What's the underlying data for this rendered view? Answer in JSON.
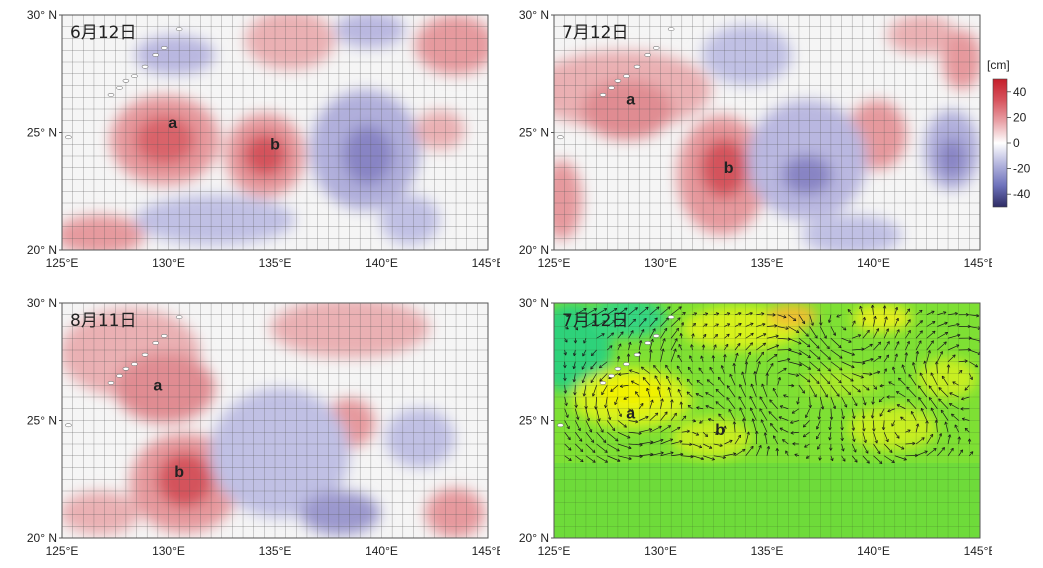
{
  "colorbar": {
    "unit": "[cm]",
    "ticks": [
      "40",
      "20",
      "0",
      "-20",
      "-40"
    ],
    "colors": [
      "#2d2b64",
      "#6e72bb",
      "#b4b5de",
      "#ffffff",
      "#e9a3a8",
      "#d7545e",
      "#c51f2b"
    ]
  },
  "axes": {
    "lat_ticks": [
      "30° N",
      "25° N",
      "20° N"
    ],
    "lon_ticks": [
      "125°E",
      "130°E",
      "135°E",
      "140°E",
      "145°E"
    ]
  },
  "panels": [
    {
      "id": "p1",
      "date": "6月12日",
      "kind": "anomaly",
      "eddies": [
        {
          "label": "a",
          "lon": 130.2,
          "lat": 25.4
        },
        {
          "label": "b",
          "lon": 135.0,
          "lat": 24.5
        }
      ]
    },
    {
      "id": "p2",
      "date": "7月12日",
      "kind": "anomaly",
      "eddies": [
        {
          "label": "a",
          "lon": 128.6,
          "lat": 26.4
        },
        {
          "label": "b",
          "lon": 133.2,
          "lat": 23.5
        }
      ]
    },
    {
      "id": "p3",
      "date": "8月11日",
      "kind": "anomaly",
      "eddies": [
        {
          "label": "a",
          "lon": 129.5,
          "lat": 26.5
        },
        {
          "label": "b",
          "lon": 130.5,
          "lat": 22.8
        }
      ]
    },
    {
      "id": "p4",
      "date": "7月12日",
      "kind": "current",
      "eddies": [
        {
          "label": "a",
          "lon": 128.6,
          "lat": 25.3
        },
        {
          "label": "b",
          "lon": 132.8,
          "lat": 24.6
        }
      ]
    }
  ]
}
